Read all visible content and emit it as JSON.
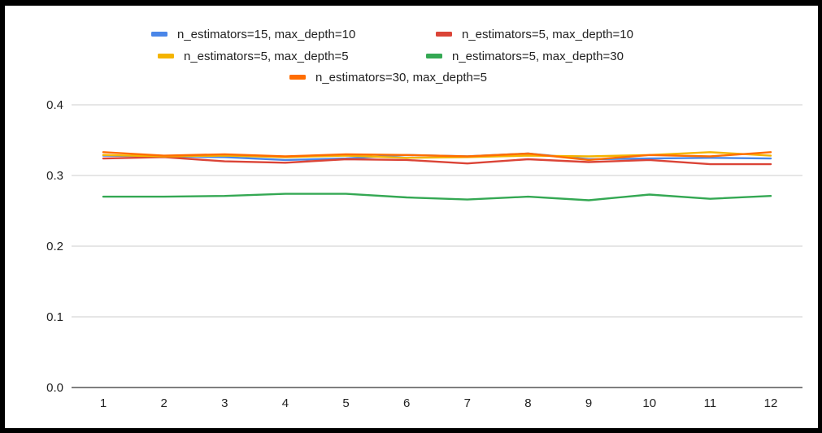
{
  "chart_data": {
    "type": "line",
    "title": "",
    "xlabel": "",
    "ylabel": "",
    "ylim": [
      0,
      0.4
    ],
    "grid": true,
    "legend_position": "top",
    "x": [
      1,
      2,
      3,
      4,
      5,
      6,
      7,
      8,
      9,
      10,
      11,
      12
    ],
    "x_tick_labels": [
      "1",
      "2",
      "3",
      "4",
      "5",
      "6",
      "7",
      "8",
      "9",
      "10",
      "11",
      "12"
    ],
    "y_ticks": [
      0.0,
      0.1,
      0.2,
      0.3,
      0.4
    ],
    "y_tick_labels": [
      "0.0",
      "0.1",
      "0.2",
      "0.3",
      "0.4"
    ],
    "series": [
      {
        "name": "n_estimators=15, max_depth=10",
        "color": "#4a86e8",
        "values": [
          0.328,
          0.327,
          0.326,
          0.322,
          0.324,
          0.329,
          0.327,
          0.331,
          0.323,
          0.324,
          0.325,
          0.324
        ]
      },
      {
        "name": "n_estimators=5, max_depth=10",
        "color": "#db4437",
        "values": [
          0.324,
          0.326,
          0.32,
          0.318,
          0.323,
          0.322,
          0.317,
          0.323,
          0.319,
          0.322,
          0.316,
          0.316
        ]
      },
      {
        "name": "n_estimators=5, max_depth=5",
        "color": "#f4b400",
        "values": [
          0.329,
          0.327,
          0.328,
          0.326,
          0.328,
          0.325,
          0.326,
          0.328,
          0.327,
          0.329,
          0.333,
          0.328
        ]
      },
      {
        "name": "n_estimators=5, max_depth=30",
        "color": "#34a853",
        "values": [
          0.27,
          0.27,
          0.271,
          0.274,
          0.274,
          0.269,
          0.266,
          0.27,
          0.265,
          0.273,
          0.267,
          0.271
        ]
      },
      {
        "name": "n_estimators=30, max_depth=5",
        "color": "#ff6d01",
        "values": [
          0.333,
          0.328,
          0.33,
          0.327,
          0.33,
          0.329,
          0.327,
          0.331,
          0.322,
          0.329,
          0.327,
          0.333
        ]
      }
    ]
  }
}
